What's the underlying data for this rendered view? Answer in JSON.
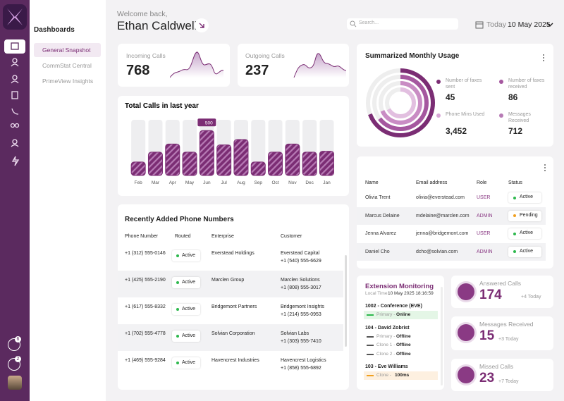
{
  "sidebar": {
    "badges": [
      "6",
      "2"
    ]
  },
  "nav": {
    "heading": "Dashboards",
    "items": [
      "General Snapshot",
      "CommStat Central",
      "PrimeView Insights"
    ]
  },
  "header": {
    "greeting": "Welcome back,",
    "name": "Ethan Caldwell",
    "search_placeholder": "Search...",
    "today": "Today",
    "date": "10 May 2025"
  },
  "stats": [
    {
      "label": "Incoming Calls",
      "value": "768"
    },
    {
      "label": "Outgoing Calls",
      "value": "237"
    }
  ],
  "chart_data": {
    "type": "bar",
    "title": "Total Calls in last year",
    "categories": [
      "Feb",
      "Mar",
      "Apr",
      "May",
      "Jun",
      "Jul",
      "Aug",
      "Sep",
      "Oct",
      "Nov",
      "Dec",
      "Jan"
    ],
    "values": [
      150,
      260,
      350,
      260,
      500,
      340,
      400,
      150,
      260,
      350,
      260,
      270
    ],
    "ylim": [
      0,
      620
    ],
    "color": "#7b2d74"
  },
  "usage": {
    "title": "Summarized Monthly Usage",
    "items": [
      {
        "label": "Number of faxes sent",
        "value": "45"
      },
      {
        "label": "Number of faxes received",
        "value": "86"
      },
      {
        "label": "Phone Mins Used",
        "value": "3,452"
      },
      {
        "label": "Messages Received",
        "value": "712"
      }
    ]
  },
  "users": {
    "headers": [
      "Name",
      "Email address",
      "Role",
      "Status"
    ],
    "rows": [
      [
        "Olivia Trent",
        "olivia@everstead.com",
        "USER",
        "Active"
      ],
      [
        "Marcus Delaine",
        "mdelaine@marclen.com",
        "ADMIN",
        "Pending"
      ],
      [
        "Jenna Alvarez",
        "jenna@bridgemont.com",
        "USER",
        "Active"
      ],
      [
        "Daniel Cho",
        "dcho@solvian.com",
        "ADMIN",
        "Active"
      ]
    ]
  },
  "phones": {
    "title": "Recently Added Phone Numbers",
    "headers": [
      "Phone Number",
      "Routed",
      "Enterprise",
      "Customer"
    ],
    "rows": [
      [
        "+1 (312) 555-0146",
        "Active",
        "Everstead Holdings",
        "Everstead Capital",
        "+1 (540) 555-6629"
      ],
      [
        "+1 (425) 555-2190",
        "Active",
        "Marclen Group",
        "Marclen Solutions",
        "+1 (808) 555-3017"
      ],
      [
        "+1 (617) 555-8332",
        "Active",
        "Bridgemont Partners",
        "Bridgemont Insights",
        "+1 (214) 555-0953"
      ],
      [
        "+1 (702) 555-4778",
        "Active",
        "Solvian Corporation",
        "Solvian Labs",
        "+1 (303) 555-7410"
      ],
      [
        "+1 (469) 555-9284",
        "Active",
        "Havencrest Industries",
        "Havencrest Logistics",
        "+1 (858) 555-6892"
      ]
    ]
  },
  "extension": {
    "title": "Extension Monitoring",
    "time_label": "Local Time",
    "time": "10 May 2025 18:16:59",
    "entries": [
      {
        "name": "1002 - Conference (EVE)",
        "lines": [
          {
            "label": "Primary -",
            "status": "Online"
          }
        ]
      },
      {
        "name": "104 - David Zobrist",
        "lines": [
          {
            "label": "Primary -",
            "status": "Offline"
          },
          {
            "label": "Clone 1 -",
            "status": "Offline"
          },
          {
            "label": "Clone 2 -",
            "status": "Offline"
          }
        ]
      },
      {
        "name": "103 - Eve Williams",
        "lines": [
          {
            "label": "Clone -",
            "status": "100ms"
          }
        ]
      }
    ]
  },
  "cards": [
    {
      "label": "Answered Calls",
      "value": "174",
      "delta": "+4 Today"
    },
    {
      "label": "Messages Received",
      "value": "15",
      "delta": "+3 Today"
    },
    {
      "label": "Missed Calls",
      "value": "23",
      "delta": "+7 Today"
    }
  ]
}
